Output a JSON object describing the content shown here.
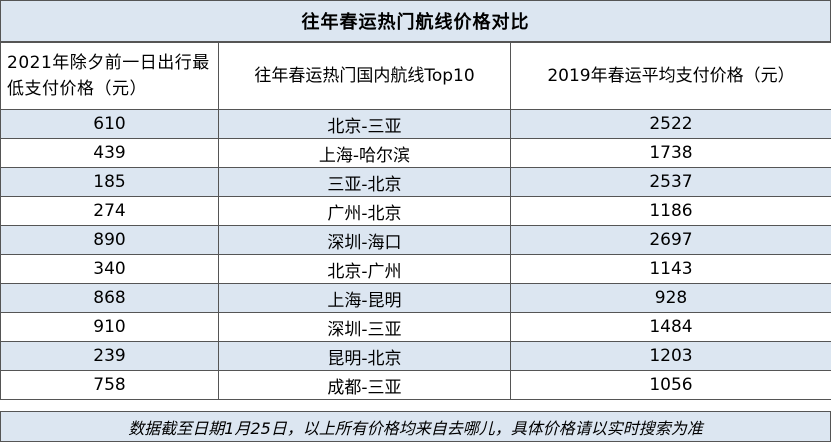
{
  "title": "往年春运热门航线价格对比",
  "columns": {
    "c1": "2021年除夕前一日出行最低支付价格（元）",
    "c2": "往年春运热门国内航线Top10",
    "c3": "2019年春运平均支付价格（元）"
  },
  "rows": [
    {
      "price_2021": "610",
      "route": "北京-三亚",
      "avg_2019": "2522"
    },
    {
      "price_2021": "439",
      "route": "上海-哈尔滨",
      "avg_2019": "1738"
    },
    {
      "price_2021": "185",
      "route": "三亚-北京",
      "avg_2019": "2537"
    },
    {
      "price_2021": "274",
      "route": "广州-北京",
      "avg_2019": "1186"
    },
    {
      "price_2021": "890",
      "route": "深圳-海口",
      "avg_2019": "2697"
    },
    {
      "price_2021": "340",
      "route": "北京-广州",
      "avg_2019": "1143"
    },
    {
      "price_2021": "868",
      "route": "上海-昆明",
      "avg_2019": "928"
    },
    {
      "price_2021": "910",
      "route": "深圳-三亚",
      "avg_2019": "1484"
    },
    {
      "price_2021": "239",
      "route": "昆明-北京",
      "avg_2019": "1203"
    },
    {
      "price_2021": "758",
      "route": "成都-三亚",
      "avg_2019": "1056"
    }
  ],
  "footer": "数据截至日期1月25日，以上所有价格均来自去哪儿，具体价格请以实时搜索为准",
  "colors": {
    "band": "#dce6f1",
    "border": "#555555"
  }
}
